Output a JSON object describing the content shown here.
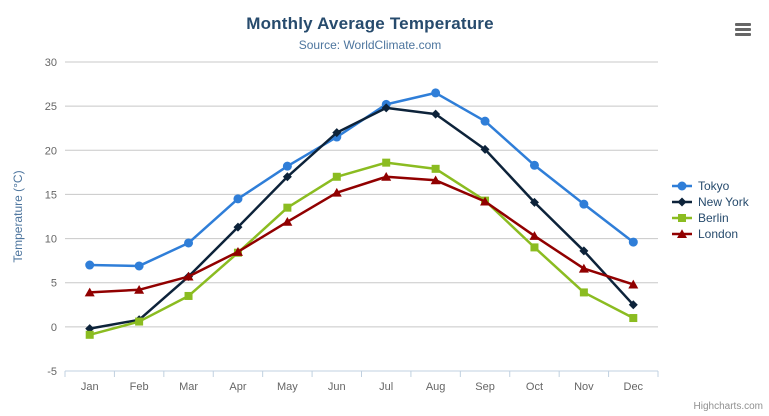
{
  "header": {
    "title": "Monthly Average Temperature",
    "subtitle": "Source: WorldClimate.com"
  },
  "credit": "Highcharts.com",
  "colors": {
    "title": "#274b6d",
    "subtitle": "#4d759e",
    "axis_title": "#4d759e",
    "tick_label": "#666666",
    "gridline": "#c8c8c8",
    "axis_line": "#c0d0e0",
    "legend_text": "#274b6d",
    "credit": "#909090"
  },
  "chart_data": {
    "type": "line",
    "title": "Monthly Average Temperature",
    "subtitle": "Source: WorldClimate.com",
    "xlabel": "",
    "ylabel": "Temperature (°C)",
    "ylim": [
      -5,
      30
    ],
    "ytick_step": 5,
    "grid": true,
    "legend_position": "right",
    "categories": [
      "Jan",
      "Feb",
      "Mar",
      "Apr",
      "May",
      "Jun",
      "Jul",
      "Aug",
      "Sep",
      "Oct",
      "Nov",
      "Dec"
    ],
    "series": [
      {
        "name": "Tokyo",
        "color": "#2f7ed8",
        "marker": "circle",
        "values": [
          7.0,
          6.9,
          9.5,
          14.5,
          18.2,
          21.5,
          25.2,
          26.5,
          23.3,
          18.3,
          13.9,
          9.6
        ]
      },
      {
        "name": "New York",
        "color": "#0d233a",
        "marker": "diamond",
        "values": [
          -0.2,
          0.8,
          5.7,
          11.3,
          17.0,
          22.0,
          24.8,
          24.1,
          20.1,
          14.1,
          8.6,
          2.5
        ]
      },
      {
        "name": "Berlin",
        "color": "#8bbc21",
        "marker": "square",
        "values": [
          -0.9,
          0.6,
          3.5,
          8.4,
          13.5,
          17.0,
          18.6,
          17.9,
          14.3,
          9.0,
          3.9,
          1.0
        ]
      },
      {
        "name": "London",
        "color": "#910000",
        "marker": "triangle",
        "values": [
          3.9,
          4.2,
          5.7,
          8.5,
          11.9,
          15.2,
          17.0,
          16.6,
          14.2,
          10.3,
          6.6,
          4.8
        ]
      }
    ]
  }
}
